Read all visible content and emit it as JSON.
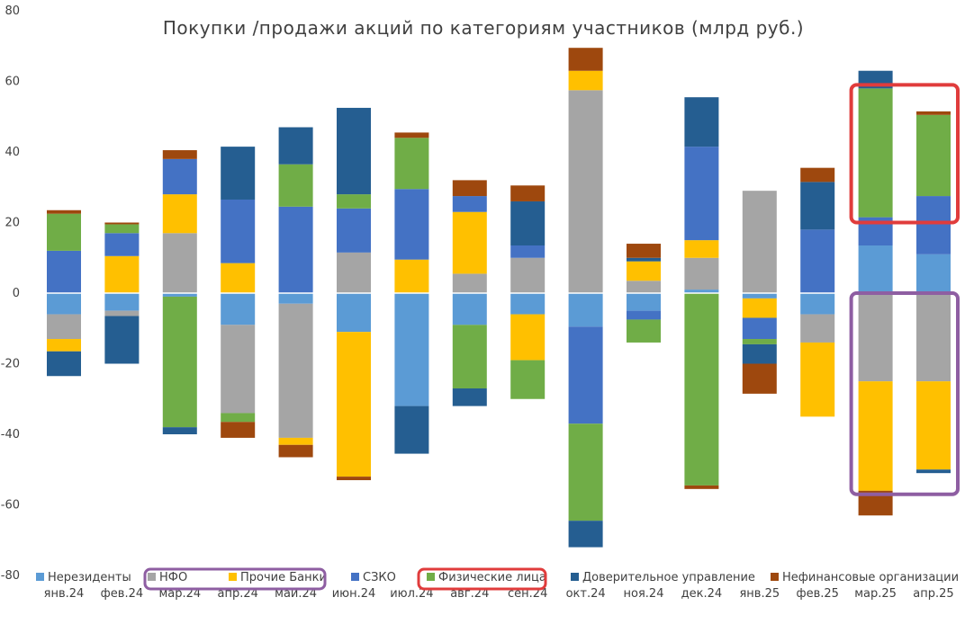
{
  "chart_data": {
    "type": "bar",
    "stacked": true,
    "title": "Покупки /продажи акций по категориям участников (млрд руб.)",
    "xlabel": "",
    "ylabel": "",
    "ylim": [
      -80,
      80
    ],
    "yticks": [
      80,
      60,
      40,
      20,
      0,
      -20,
      -40,
      -60,
      -80
    ],
    "grid": false,
    "legend_position": "bottom",
    "categories": [
      "янв.24",
      "фев.24",
      "мар.24",
      "апр.24",
      "май.24",
      "июн.24",
      "июл.24",
      "авг.24",
      "сен.24",
      "окт.24",
      "ноя.24",
      "дек.24",
      "янв.25",
      "фев.25",
      "мар.25",
      "апр.25"
    ],
    "series": [
      {
        "name": "Нерезиденты",
        "color": "#5b9bd5",
        "values": [
          -6,
          -5,
          -1,
          -9,
          -3,
          -11,
          -32,
          -9,
          -6,
          -9.5,
          -5,
          1,
          -1.5,
          -6,
          13.5,
          11
        ]
      },
      {
        "name": "НФО",
        "color": "#a5a5a5",
        "values": [
          -7,
          -1.5,
          17,
          -25,
          -38,
          11.5,
          0,
          5.5,
          10,
          57.5,
          3.5,
          9,
          29,
          -8,
          -25,
          -25
        ]
      },
      {
        "name": "Прочие Банки",
        "color": "#ffc000",
        "values": [
          -3.5,
          10.5,
          11,
          8.5,
          -2,
          -41,
          9.5,
          17.5,
          -13,
          5.5,
          5.5,
          5,
          -5.5,
          -21,
          -31,
          -25
        ]
      },
      {
        "name": "СЗКО",
        "color": "#4472c4",
        "values": [
          12,
          6.5,
          10,
          18,
          24.5,
          12.5,
          20,
          4.5,
          3.5,
          -27.5,
          -2.5,
          26.5,
          -6,
          18,
          8,
          16.5
        ]
      },
      {
        "name": "Физические лица",
        "color": "#70ad47",
        "values": [
          10.5,
          2.5,
          -37,
          -2.5,
          12,
          4,
          14.5,
          -18,
          -11,
          -27.5,
          -6.5,
          -54.5,
          -1.5,
          0,
          36.5,
          23
        ]
      },
      {
        "name": "Доверительное управление",
        "color": "#255e91",
        "values": [
          -7,
          -13.5,
          -2,
          15,
          10.5,
          24.5,
          -13.5,
          -5,
          12.5,
          -7.5,
          1,
          14,
          -5.5,
          13.5,
          5,
          -1
        ]
      },
      {
        "name": "Нефинансовые организации",
        "color": "#9e480e",
        "values": [
          1,
          0.5,
          2.5,
          -4.5,
          -3.5,
          -1,
          1.5,
          4.5,
          4.5,
          6.5,
          4,
          -1,
          -8.5,
          4,
          -7,
          1
        ]
      }
    ],
    "highlights": [
      {
        "color": "#e03c3c",
        "from_category": 14,
        "to_category": 15,
        "y_range": [
          20,
          59
        ],
        "series": "Физические лица"
      },
      {
        "color": "#8e5ea2",
        "from_category": 14,
        "to_category": 15,
        "y_range": [
          -57,
          0
        ],
        "series": [
          "НФО",
          "Прочие Банки"
        ]
      }
    ]
  }
}
